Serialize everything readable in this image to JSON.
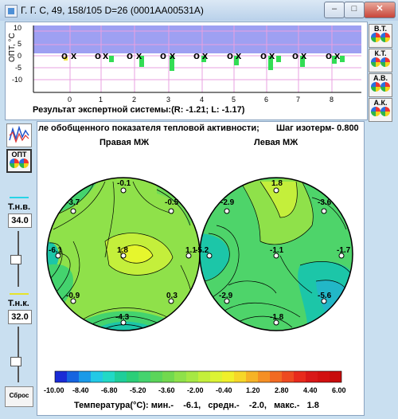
{
  "window": {
    "title": "Г. Г. С, 49, 158/105 D=26 (0001AA00531A)",
    "min_label": "–",
    "max_label": "□",
    "close_label": "✕"
  },
  "top_chart": {
    "ylabel": "ОПТ, °С",
    "y_ticks": [
      "10",
      "5",
      "0",
      "-5",
      "-10"
    ],
    "x_ticks": [
      "0",
      "1",
      "2",
      "3",
      "4",
      "5",
      "6",
      "7",
      "8"
    ],
    "result_text": "Результат экспертной системы:(R: -1.21; L: -1.17)",
    "band_color": "#9ea0f2",
    "marker_o": "o",
    "marker_x": "x"
  },
  "right_buttons": [
    "В.Т.",
    "К.Т.",
    "А.В.",
    "А.К."
  ],
  "left_panel": {
    "opt_label": "ОПТ",
    "tnv_label": "Т.н.в.",
    "tnv_value": "34.0",
    "tnk_label": "Т.н.к.",
    "tnk_value": "32.0",
    "reset_label": "Сброс"
  },
  "map": {
    "header_text": "ле обобщенного показателя тепловой активности;",
    "step_text": "Шаг изотерм- 0.800",
    "right_title": "Правая МЖ",
    "left_title": "Левая МЖ",
    "right_points": [
      "-0.1",
      "-3.7",
      "-0.5",
      "-6.1",
      "1.8",
      "1.1",
      "-0.9",
      "0.3",
      "-4.3"
    ],
    "left_points": [
      "1.8",
      "-2.9",
      "-3.6",
      "-5.2",
      "-1.1",
      "-1.7",
      "-2.9",
      "-5.6",
      "-1.8"
    ]
  },
  "colorbar": {
    "ticks": [
      "-10.00",
      "-8.40",
      "-6.80",
      "-5.20",
      "-3.60",
      "-2.00",
      "-0.40",
      "1.20",
      "2.80",
      "4.40",
      "6.00"
    ],
    "stats_text": "Температура(°С): мин.-    -6.1,   средн.-    -2.0,   макс.-   1.8"
  }
}
